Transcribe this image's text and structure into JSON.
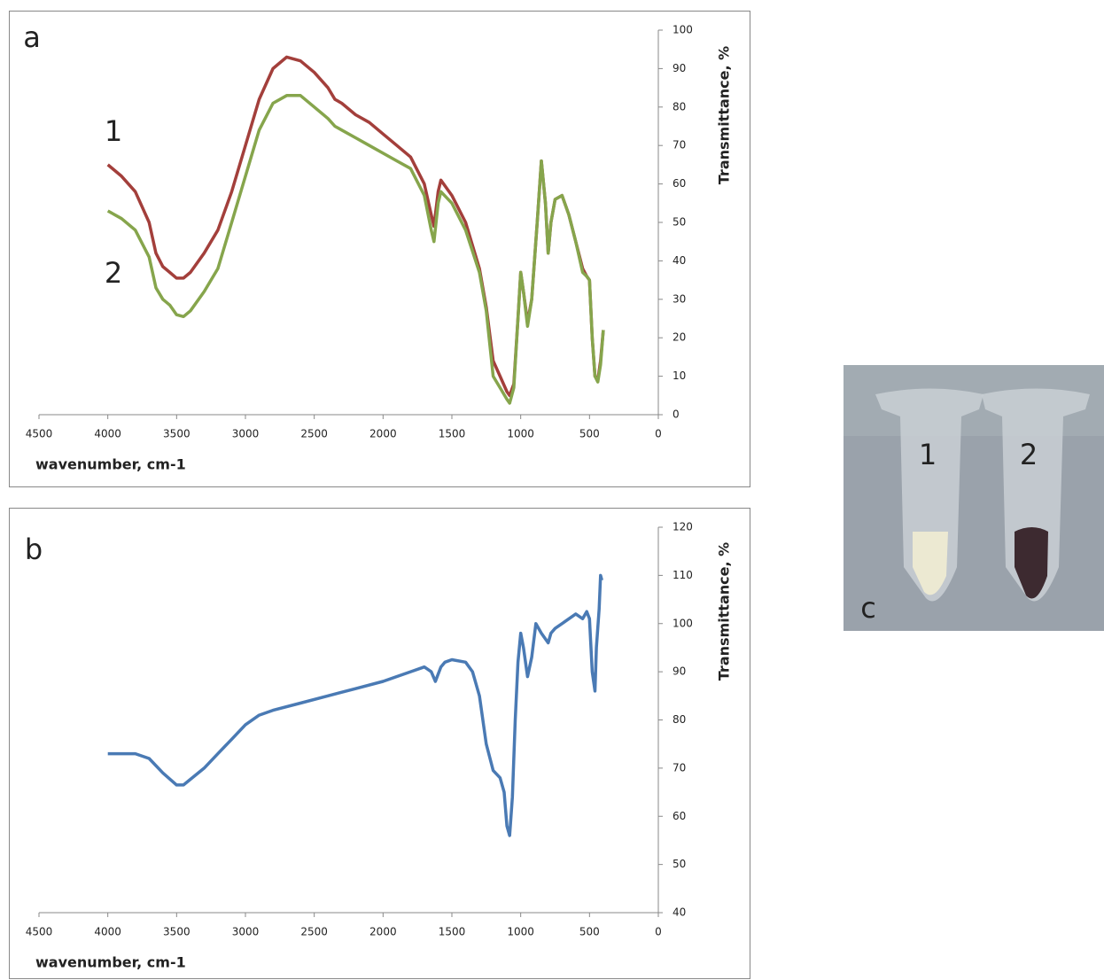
{
  "chart_data": [
    {
      "type": "line",
      "panel": "a",
      "x_label": "wavenumber, cm-1",
      "y_label": "Transmittance, %",
      "xlim": [
        4500,
        0
      ],
      "xticks": [
        4500,
        4000,
        3500,
        3000,
        2500,
        2000,
        1500,
        1000,
        500,
        0
      ],
      "ylim": [
        0,
        100
      ],
      "yticks": [
        0,
        10,
        20,
        30,
        40,
        50,
        60,
        70,
        80,
        90,
        100
      ],
      "grid": false,
      "x": [
        4000,
        3900,
        3800,
        3700,
        3650,
        3600,
        3550,
        3500,
        3450,
        3400,
        3300,
        3200,
        3100,
        3000,
        2900,
        2800,
        2700,
        2600,
        2500,
        2400,
        2350,
        2300,
        2200,
        2100,
        2000,
        1900,
        1800,
        1700,
        1650,
        1630,
        1600,
        1580,
        1500,
        1400,
        1300,
        1250,
        1200,
        1150,
        1100,
        1080,
        1050,
        1020,
        1000,
        980,
        950,
        920,
        880,
        850,
        820,
        800,
        780,
        750,
        700,
        650,
        600,
        550,
        520,
        500,
        480,
        460,
        440,
        420,
        400
      ],
      "series": [
        {
          "name": "1",
          "color": "#a33f3b",
          "values": [
            65,
            62,
            58,
            50,
            42,
            38.5,
            37,
            35.5,
            35.5,
            37,
            42,
            48,
            58,
            70,
            82,
            90,
            93,
            92,
            89,
            85,
            82,
            81,
            78,
            76,
            73,
            70,
            67,
            60,
            52,
            49,
            58,
            61,
            57,
            50,
            38,
            28,
            14,
            10,
            6,
            5,
            8,
            25,
            37,
            32,
            24,
            30,
            50,
            66,
            55,
            42,
            50,
            56,
            57,
            52,
            45,
            38,
            36,
            35,
            20,
            10,
            9,
            14,
            22
          ]
        },
        {
          "name": "2",
          "color": "#86a54c",
          "values": [
            53,
            51,
            48,
            41,
            33,
            30,
            28.5,
            26,
            25.5,
            27,
            32,
            38,
            50,
            62,
            74,
            81,
            83,
            83,
            80,
            77,
            75,
            74,
            72,
            70,
            68,
            66,
            64,
            57,
            48,
            45,
            55,
            58,
            55,
            48,
            37,
            27,
            10,
            7,
            4,
            3,
            7,
            25,
            37,
            32,
            23,
            30,
            50,
            66,
            55,
            42,
            50,
            56,
            57,
            52,
            45,
            37,
            36,
            35,
            20,
            10,
            8.5,
            13,
            22
          ]
        }
      ]
    },
    {
      "type": "line",
      "panel": "b",
      "x_label": "wavenumber, cm-1",
      "y_label": "Transmittance, %",
      "xlim": [
        4500,
        0
      ],
      "xticks": [
        4500,
        4000,
        3500,
        3000,
        2500,
        2000,
        1500,
        1000,
        500,
        0
      ],
      "ylim": [
        40,
        120
      ],
      "yticks": [
        40,
        50,
        60,
        70,
        80,
        90,
        100,
        110,
        120
      ],
      "grid": false,
      "color": "#4a7ab4",
      "x": [
        4000,
        3800,
        3700,
        3600,
        3500,
        3450,
        3300,
        3200,
        3100,
        3000,
        2900,
        2800,
        2600,
        2400,
        2200,
        2000,
        1800,
        1700,
        1650,
        1620,
        1580,
        1550,
        1500,
        1400,
        1350,
        1300,
        1250,
        1200,
        1150,
        1120,
        1100,
        1080,
        1060,
        1040,
        1020,
        1000,
        980,
        950,
        920,
        890,
        850,
        800,
        780,
        750,
        700,
        600,
        550,
        520,
        500,
        480,
        460,
        450,
        430,
        420,
        410
      ],
      "values": [
        73,
        73,
        72,
        69,
        66.5,
        66.5,
        70,
        73,
        76,
        79,
        81,
        82,
        83.5,
        85,
        86.5,
        88,
        90,
        91,
        90,
        88,
        91,
        92,
        92.5,
        92,
        90,
        85,
        75,
        69.5,
        68,
        65,
        58,
        56,
        64,
        80,
        92,
        98,
        95,
        89,
        93,
        100,
        98,
        96,
        98,
        99,
        100,
        102,
        101,
        102.5,
        101,
        90,
        86,
        95,
        103,
        110,
        109
      ]
    }
  ],
  "photo": {
    "label": "c",
    "tubes": [
      "1",
      "2"
    ]
  }
}
